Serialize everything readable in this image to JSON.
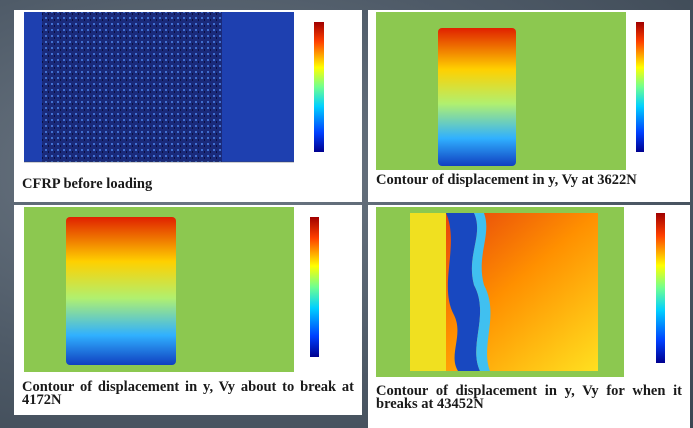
{
  "panels": [
    {
      "caption": "CFRP before loading"
    },
    {
      "caption": "Contour of displacement in y, Vy at 3622N"
    },
    {
      "caption": "Contour of displacement in y, Vy about to break at 4172N"
    },
    {
      "caption": "Contour of displacement in y, Vy for when it breaks at 43452N"
    }
  ]
}
